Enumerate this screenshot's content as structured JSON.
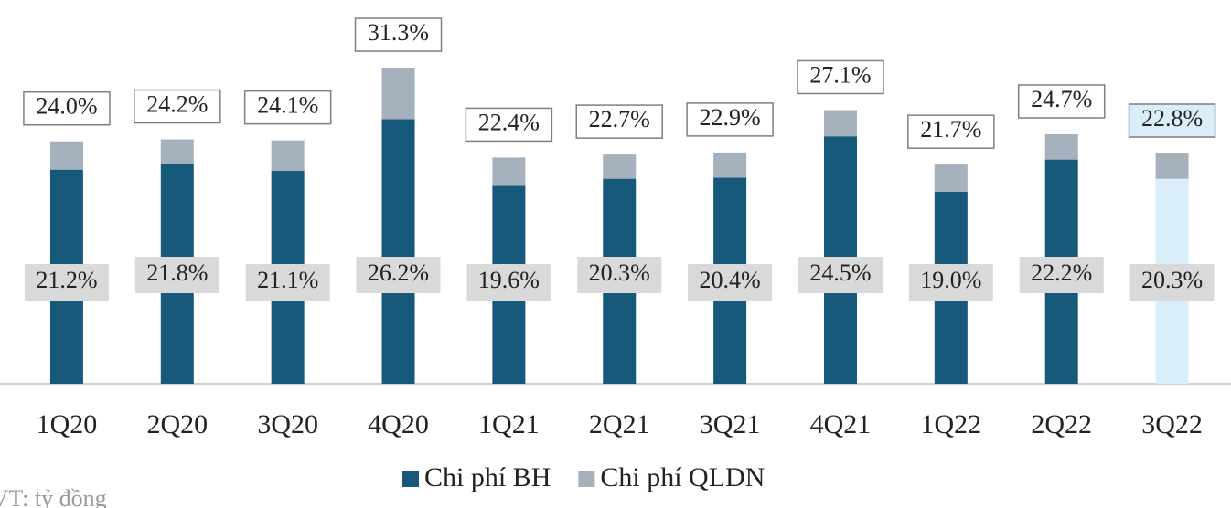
{
  "chart_data": {
    "type": "stacked_bar",
    "categories": [
      "1Q20",
      "2Q20",
      "3Q20",
      "4Q20",
      "1Q21",
      "2Q21",
      "3Q21",
      "4Q21",
      "1Q22",
      "2Q22",
      "3Q22"
    ],
    "series": [
      {
        "name": "Chi phí BH",
        "color": "#17597a",
        "colors": [
          "#17597a",
          "#17597a",
          "#17597a",
          "#17597a",
          "#17597a",
          "#17597a",
          "#17597a",
          "#17597a",
          "#17597a",
          "#17597a",
          "#d9eef8"
        ],
        "values": [
          21.2,
          21.8,
          21.1,
          26.2,
          19.6,
          20.3,
          20.4,
          24.5,
          19.0,
          22.2,
          20.3
        ],
        "value_labels": [
          "21.2%",
          "21.8%",
          "21.1%",
          "26.2%",
          "19.6%",
          "20.3%",
          "20.4%",
          "24.5%",
          "19.0%",
          "22.2%",
          "20.3%"
        ]
      },
      {
        "name": "Chi phí QLDN",
        "color": "#a5b1bd",
        "values": [
          2.8,
          2.4,
          3.0,
          5.1,
          2.8,
          2.4,
          2.5,
          2.6,
          2.7,
          2.5,
          2.5
        ]
      }
    ],
    "totals": [
      24.0,
      24.2,
      24.1,
      31.3,
      22.4,
      22.7,
      22.9,
      27.1,
      21.7,
      24.7,
      22.8
    ],
    "total_labels": [
      "24.0%",
      "24.2%",
      "24.1%",
      "31.3%",
      "22.4%",
      "22.7%",
      "22.9%",
      "27.1%",
      "21.7%",
      "24.7%",
      "22.8%"
    ],
    "total_label_fills": [
      "#ffffff",
      "#ffffff",
      "#ffffff",
      "#ffffff",
      "#ffffff",
      "#ffffff",
      "#ffffff",
      "#ffffff",
      "#ffffff",
      "#ffffff",
      "#d9eef8"
    ],
    "ylim": [
      0,
      38
    ],
    "legend": "bottom",
    "note": "ĐVT: tỷ đồng"
  }
}
